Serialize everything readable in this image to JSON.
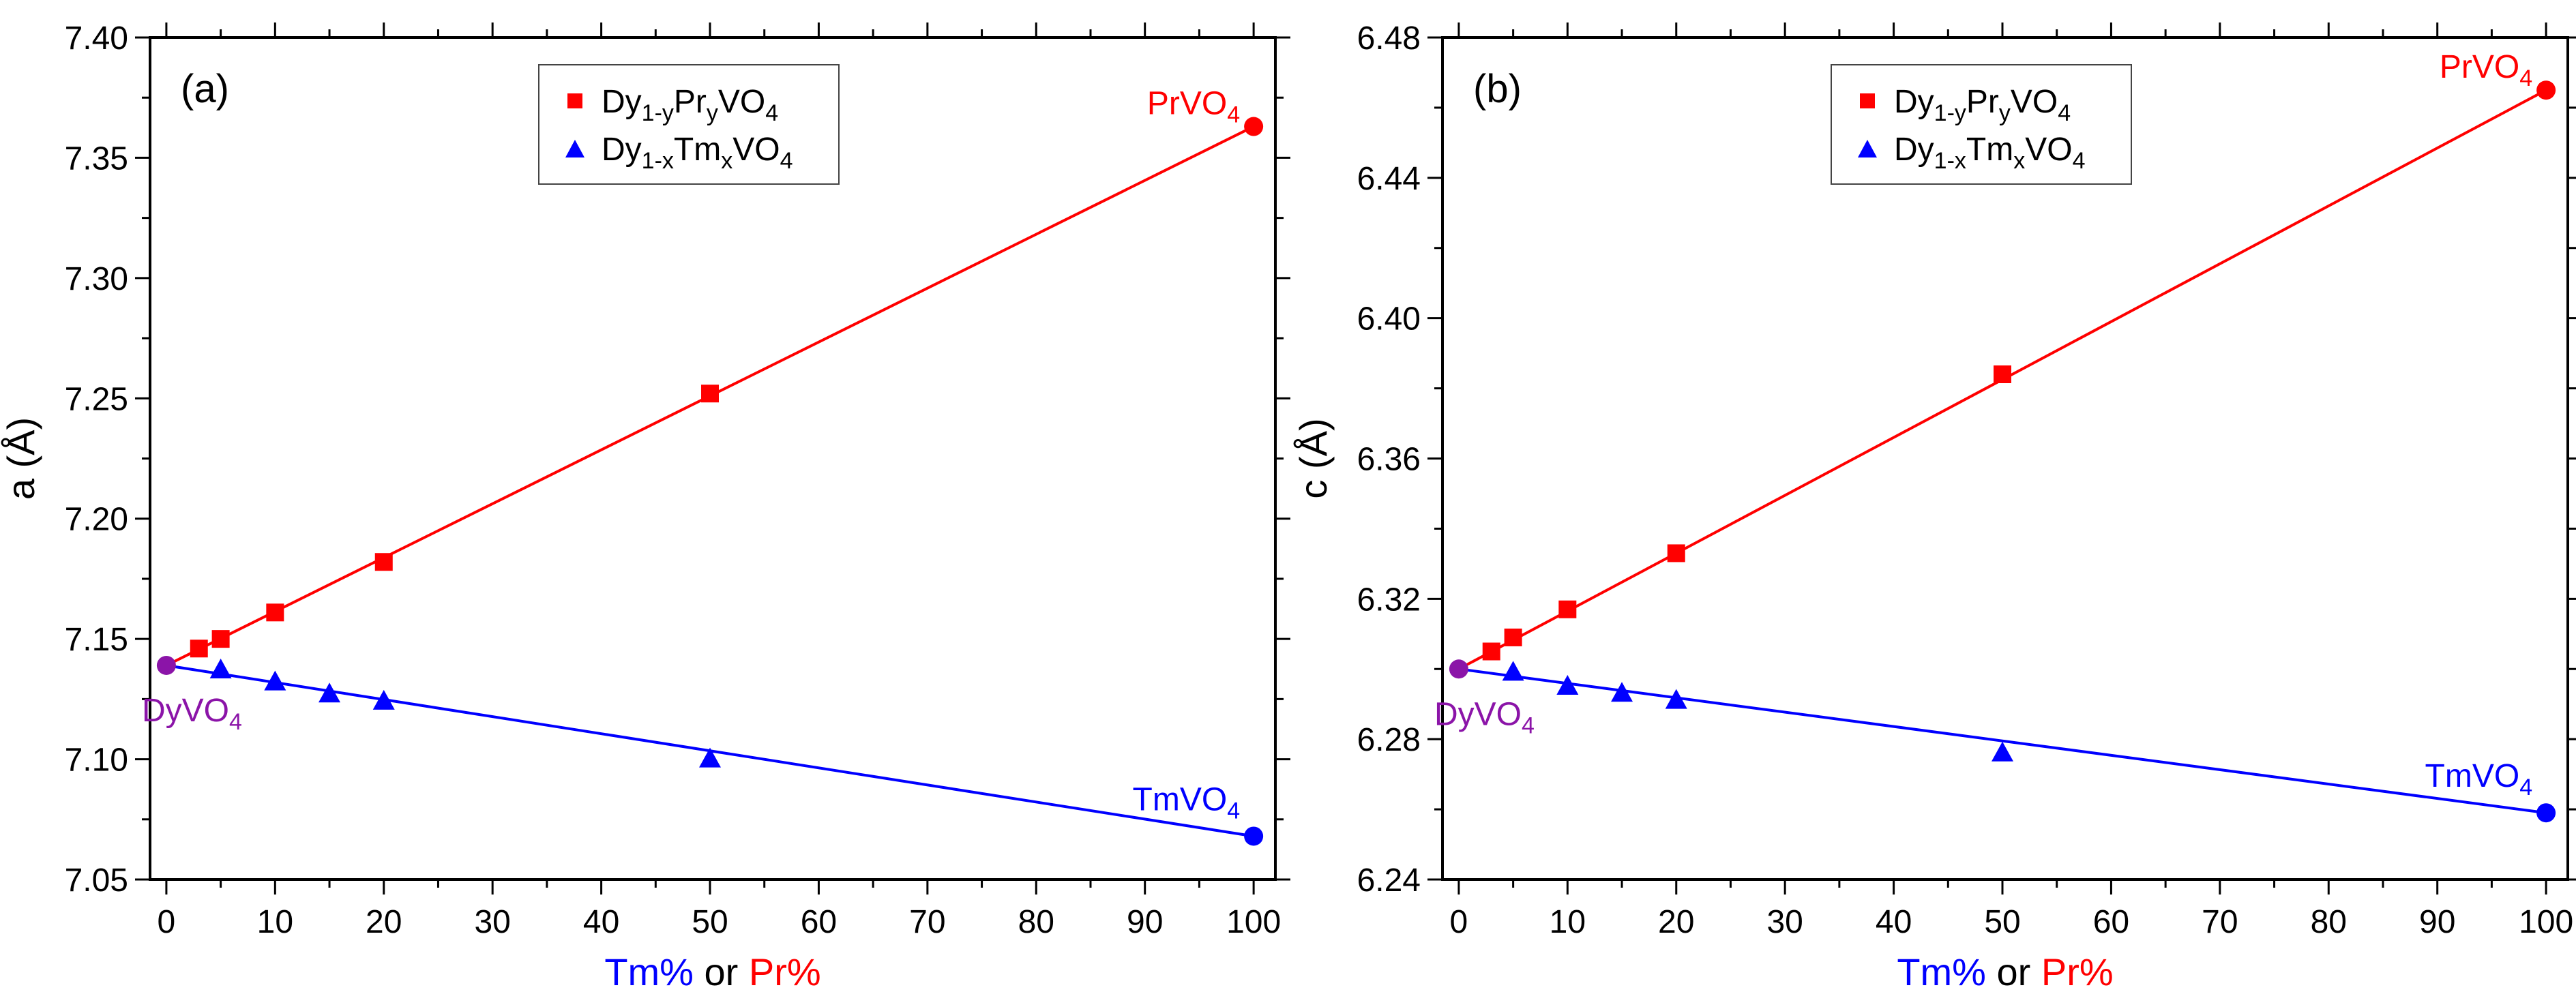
{
  "colors": {
    "pr": "#ff0000",
    "tm": "#0000ff",
    "dy": "#8b14a8",
    "axis": "#000000"
  },
  "xaxis": {
    "title_tm": "Tm%",
    "title_or": " or ",
    "title_pr": "Pr%",
    "range": [
      -1.5,
      102
    ],
    "ticks": [
      0,
      10,
      20,
      30,
      40,
      50,
      60,
      70,
      80,
      90,
      100
    ],
    "tick_labels": [
      "0",
      "10",
      "20",
      "30",
      "40",
      "50",
      "60",
      "70",
      "80",
      "90",
      "100"
    ]
  },
  "legend": {
    "pr": {
      "base": "Dy",
      "sub1": "1-y",
      "mid": "Pr",
      "sub2": "y",
      "end": "VO",
      "sub3": "4"
    },
    "tm": {
      "base": "Dy",
      "sub1": "1-x",
      "mid": "Tm",
      "sub2": "x",
      "end": "VO",
      "sub3": "4"
    }
  },
  "annotations": {
    "prvo4": {
      "base": "PrVO",
      "sub": "4"
    },
    "tmvo4": {
      "base": "TmVO",
      "sub": "4"
    },
    "dyvo4": {
      "base": "DyVO",
      "sub": "4"
    }
  },
  "chart_data": [
    {
      "type": "scatter",
      "panel_label": "(a)",
      "ylabel": "a (Å)",
      "ylim": [
        7.05,
        7.4
      ],
      "yticks": [
        7.05,
        7.1,
        7.15,
        7.2,
        7.25,
        7.3,
        7.35,
        7.4
      ],
      "ytick_labels": [
        "7.05",
        "7.10",
        "7.15",
        "7.20",
        "7.25",
        "7.30",
        "7.35",
        "7.40"
      ],
      "series": [
        {
          "name": "Dy1-yPryVO4",
          "marker": "square",
          "x": [
            3,
            5,
            10,
            20,
            50
          ],
          "y": [
            7.146,
            7.15,
            7.161,
            7.182,
            7.252
          ]
        },
        {
          "name": "Dy1-xTmxVO4",
          "marker": "triangle",
          "x": [
            5,
            10,
            15,
            20,
            50
          ],
          "y": [
            7.137,
            7.132,
            7.127,
            7.124,
            7.1
          ]
        }
      ],
      "fit_lines": [
        {
          "name": "Pr fit",
          "x": [
            0,
            100
          ],
          "y": [
            7.139,
            7.363
          ]
        },
        {
          "name": "Tm fit",
          "x": [
            0,
            100
          ],
          "y": [
            7.139,
            7.068
          ]
        }
      ],
      "endpoints": [
        {
          "name": "DyVO4",
          "x": 0,
          "y": 7.139
        },
        {
          "name": "PrVO4",
          "x": 100,
          "y": 7.363
        },
        {
          "name": "TmVO4",
          "x": 100,
          "y": 7.068
        }
      ]
    },
    {
      "type": "scatter",
      "panel_label": "(b)",
      "ylabel": "c (Å)",
      "ylim": [
        6.24,
        6.48
      ],
      "yticks": [
        6.24,
        6.28,
        6.32,
        6.36,
        6.4,
        6.44,
        6.48
      ],
      "ytick_labels": [
        "6.24",
        "6.28",
        "6.32",
        "6.36",
        "6.40",
        "6.44",
        "6.48"
      ],
      "series": [
        {
          "name": "Dy1-yPryVO4",
          "marker": "square",
          "x": [
            3,
            5,
            10,
            20,
            50
          ],
          "y": [
            6.305,
            6.309,
            6.317,
            6.333,
            6.384
          ]
        },
        {
          "name": "Dy1-xTmxVO4",
          "marker": "triangle",
          "x": [
            5,
            10,
            15,
            20,
            50
          ],
          "y": [
            6.299,
            6.295,
            6.293,
            6.291,
            6.276
          ]
        }
      ],
      "fit_lines": [
        {
          "name": "Pr fit",
          "x": [
            0,
            100
          ],
          "y": [
            6.3,
            6.465
          ]
        },
        {
          "name": "Tm fit",
          "x": [
            0,
            100
          ],
          "y": [
            6.3,
            6.259
          ]
        }
      ],
      "endpoints": [
        {
          "name": "DyVO4",
          "x": 0,
          "y": 6.3
        },
        {
          "name": "PrVO4",
          "x": 100,
          "y": 6.465
        },
        {
          "name": "TmVO4",
          "x": 100,
          "y": 6.259
        }
      ]
    }
  ]
}
